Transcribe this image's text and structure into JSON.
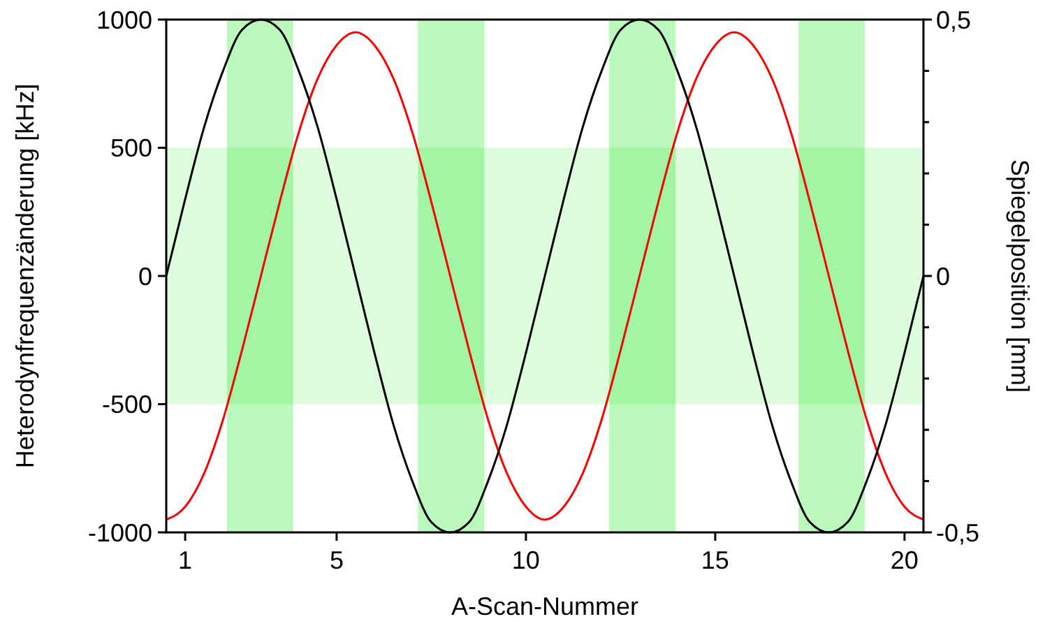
{
  "chart_data": {
    "type": "line",
    "xlabel": "A-Scan-Nummer",
    "ylabel": "Heterodynfrequenzänderung [kHz]",
    "y2label": "Spiegelposition [mm]",
    "x": [
      0.5,
      1,
      1.5,
      2,
      2.5,
      3,
      3.5,
      4,
      4.5,
      5,
      5.5,
      6,
      6.5,
      7,
      7.5,
      8,
      8.5,
      9,
      9.5,
      10,
      10.5,
      11,
      11.5,
      12,
      12.5,
      13,
      13.5,
      14,
      14.5,
      15,
      15.5,
      16,
      16.5,
      17,
      17.5,
      18,
      18.5,
      19,
      19.5,
      20,
      20.5
    ],
    "series": [
      {
        "color": "#ff0000",
        "values": [
          -950,
          -900,
          -770,
          -560,
          -290,
          0,
          290,
          560,
          770,
          900,
          950,
          900,
          770,
          560,
          290,
          0,
          -290,
          -560,
          -770,
          -900,
          -950,
          -900,
          -770,
          -560,
          -290,
          0,
          290,
          560,
          770,
          900,
          950,
          900,
          770,
          560,
          290,
          0,
          -290,
          -560,
          -770,
          -900,
          -950
        ]
      },
      {
        "color": "#000000",
        "axis": "y2",
        "values": [
          0,
          0.15,
          0.29,
          0.4,
          0.48,
          0.5,
          0.48,
          0.4,
          0.29,
          0.15,
          0,
          -0.15,
          -0.29,
          -0.4,
          -0.48,
          -0.5,
          -0.48,
          -0.4,
          -0.29,
          -0.15,
          0,
          0.15,
          0.29,
          0.4,
          0.48,
          0.5,
          0.48,
          0.4,
          0.29,
          0.15,
          0,
          -0.15,
          -0.29,
          -0.4,
          -0.48,
          -0.5,
          -0.48,
          -0.4,
          -0.29,
          -0.15,
          0
        ]
      }
    ],
    "xlim": [
      0.5,
      20.5
    ],
    "xticks": [
      1,
      5,
      10,
      15,
      20
    ],
    "ylim": [
      -1000,
      1000
    ],
    "yticks": [
      -1000,
      -500,
      0,
      500,
      1000
    ],
    "y2lim": [
      -0.5,
      0.5
    ],
    "y2ticks": [
      {
        "value": -0.5,
        "label": "-0,5"
      },
      {
        "value": -0.4,
        "label": null
      },
      {
        "value": -0.3,
        "label": null
      },
      {
        "value": -0.2,
        "label": null
      },
      {
        "value": -0.1,
        "label": null
      },
      {
        "value": 0,
        "label": "0"
      },
      {
        "value": 0.1,
        "label": null
      },
      {
        "value": 0.2,
        "label": null
      },
      {
        "value": 0.3,
        "label": null
      },
      {
        "value": 0.4,
        "label": null
      },
      {
        "value": 0.5,
        "label": "0,5"
      }
    ],
    "bands": [
      {
        "axis": "y",
        "from": -500,
        "to": 500,
        "color": "#ddfcdd"
      },
      {
        "axis": "x",
        "from": 2.1,
        "to": 3.85,
        "color": "#bbf8bb"
      },
      {
        "axis": "x",
        "from": 7.15,
        "to": 8.9,
        "color": "#bbf8bb"
      },
      {
        "axis": "x",
        "from": 12.2,
        "to": 13.95,
        "color": "#bbf8bb"
      },
      {
        "axis": "x",
        "from": 17.2,
        "to": 18.95,
        "color": "#bbf8bb"
      }
    ],
    "grid": false,
    "line_style": "solid",
    "marker": "none"
  }
}
